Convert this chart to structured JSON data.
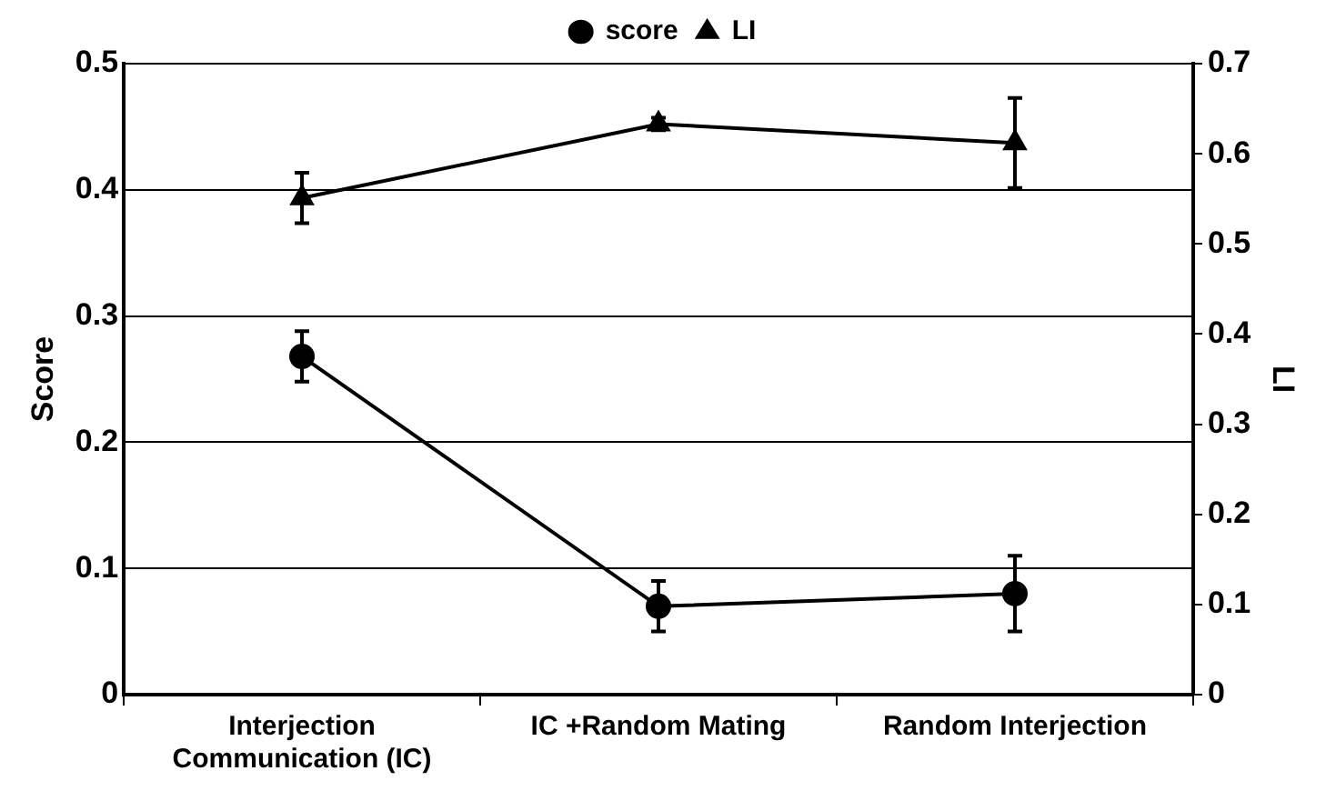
{
  "chart_data": {
    "type": "line",
    "categories": [
      "Interjection Communication (IC)",
      "IC +Random Mating",
      "Random Interjection"
    ],
    "ylabel": "Score",
    "y2label": "LI",
    "series": [
      {
        "name": "score",
        "color": "#000000",
        "marker": "circle",
        "values": [
          0.268,
          0.07,
          0.08
        ],
        "errors": [
          0.02,
          0.02,
          [
            0.05,
            0.11
          ]
        ]
      },
      {
        "name": "LI",
        "color": "#000000",
        "marker": "triangle",
        "axis": "y2",
        "values": [
          0.551,
          0.633,
          0.612
        ],
        "errors": [
          0.028,
          0.007,
          0.05
        ]
      }
    ],
    "ylim": [
      0,
      0.5
    ],
    "yticks": [
      0,
      0.1,
      0.2,
      0.3,
      0.4,
      0.5
    ],
    "y2lim": [
      0,
      0.7
    ],
    "y2ticks": [
      0,
      0.1,
      0.2,
      0.3,
      0.4,
      0.5,
      0.6,
      0.7
    ],
    "grid": "y",
    "legend": "top"
  }
}
